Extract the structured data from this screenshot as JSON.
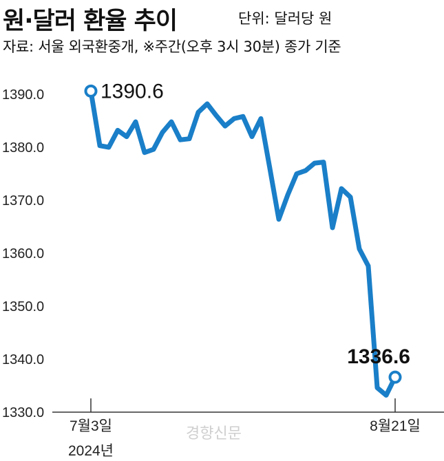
{
  "header": {
    "title": "원·달러 환율 추이",
    "unit": "단위: 달러당 원",
    "source": "자료: 서울 외국환중개, ※주간(오후 3시 30분) 종가 기준"
  },
  "watermark": "경향신문",
  "colors": {
    "line": "#1a7fc8",
    "axis": "#333333",
    "text": "#111111"
  },
  "chart_data": {
    "type": "line",
    "ylim": [
      1330.0,
      1390.0
    ],
    "yticks": [
      "1390.0",
      "1380.0",
      "1370.0",
      "1360.0",
      "1350.0",
      "1340.0",
      "1330.0"
    ],
    "xtick_labels": [
      {
        "text": "7월3일",
        "sub": "2024년"
      },
      {
        "text": "8월21일",
        "sub": ""
      }
    ],
    "series": [
      {
        "values": [
          1390.6,
          1380.3,
          1380.0,
          1383.2,
          1382.0,
          1384.8,
          1379.0,
          1379.6,
          1382.8,
          1384.8,
          1381.4,
          1381.6,
          1386.6,
          1388.2,
          1386.0,
          1384.0,
          1385.4,
          1385.8,
          1382.0,
          1385.4,
          1376.0,
          1366.4,
          1371.0,
          1375.0,
          1375.6,
          1377.0,
          1377.2,
          1364.8,
          1372.2,
          1370.6,
          1360.8,
          1357.6,
          1334.6,
          1333.2,
          1336.6
        ]
      }
    ],
    "annotations": [
      {
        "text": "1390.6",
        "point": "first",
        "bold": false
      },
      {
        "text": "1336.6",
        "point": "last",
        "bold": true
      }
    ]
  }
}
